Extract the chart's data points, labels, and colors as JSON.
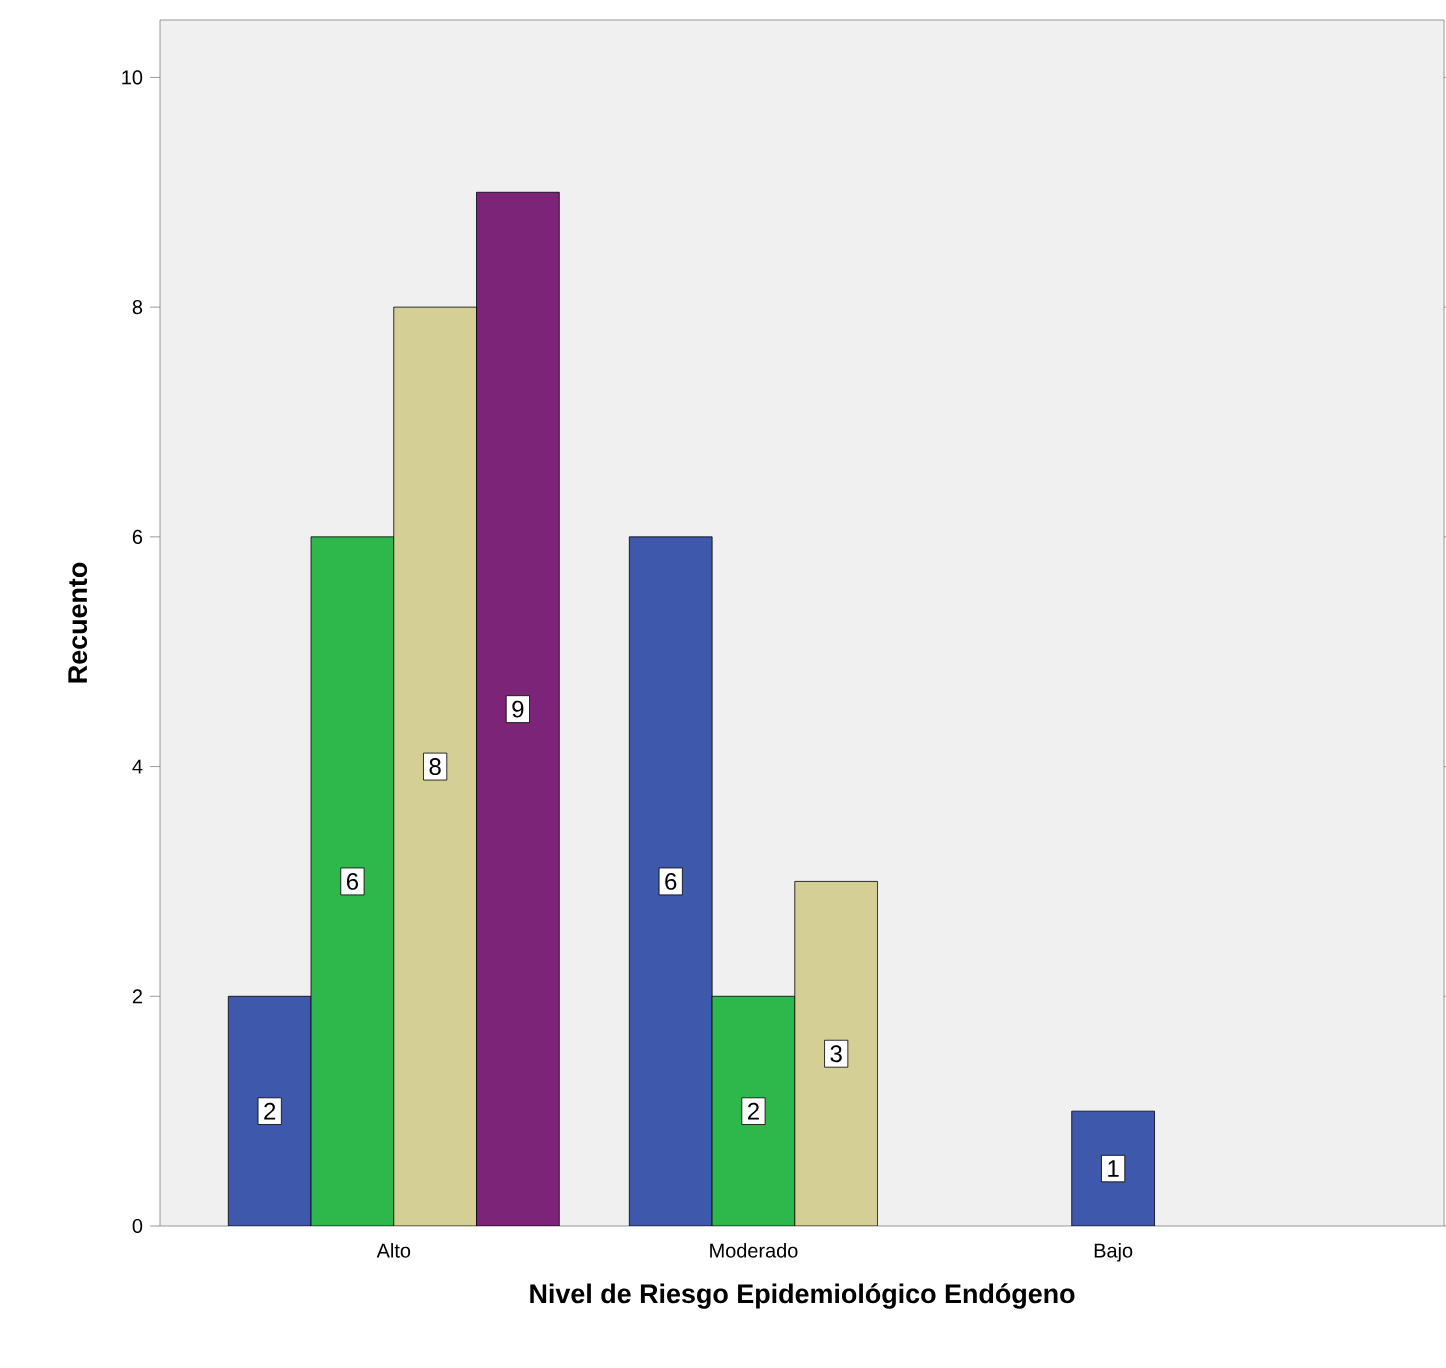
{
  "chart_data": {
    "type": "bar",
    "xlabel": "Nivel de Riesgo Epidemiológico Endógeno",
    "ylabel": "Recuento",
    "categories": [
      "Alto",
      "Moderado",
      "Bajo"
    ],
    "series": [
      {
        "color": "#3e58ac",
        "values": [
          2,
          6,
          1
        ]
      },
      {
        "color": "#2eb84b",
        "values": [
          6,
          2,
          null
        ]
      },
      {
        "color": "#d4cf95",
        "values": [
          8,
          3,
          null
        ]
      },
      {
        "color": "#7b2478",
        "values": [
          9,
          null,
          null
        ]
      }
    ],
    "ylim": [
      0,
      10.5
    ],
    "yticks": [
      0,
      2,
      4,
      6,
      8,
      10
    ],
    "data_labels": true,
    "grid": false
  }
}
